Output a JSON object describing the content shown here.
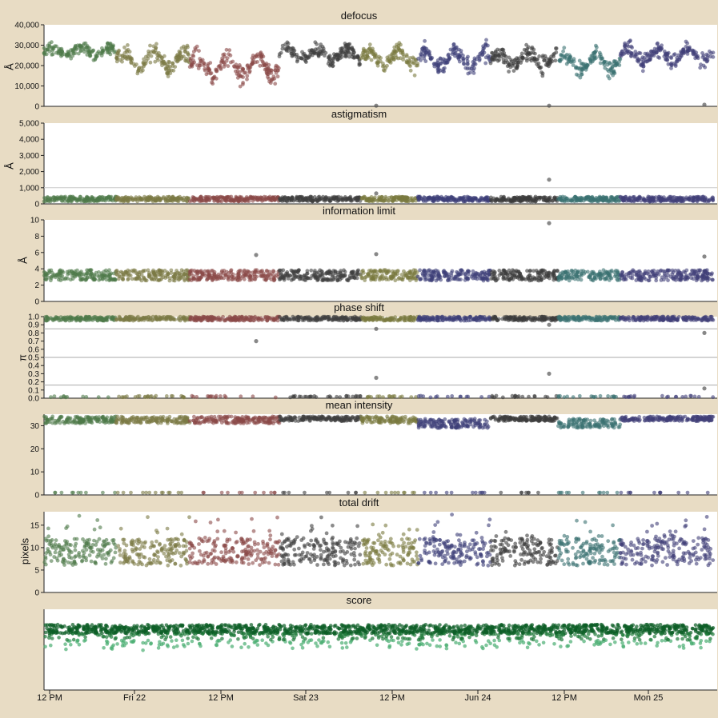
{
  "chart_data": [
    {
      "type": "scatter",
      "title": "defocus",
      "ylabel": "Å",
      "ylim": [
        0,
        40000
      ],
      "yticks": [
        "0",
        "10,000",
        "20,000",
        "30,000",
        "40,000"
      ],
      "ytick_values": [
        0,
        10000,
        20000,
        30000,
        40000
      ],
      "bands": [
        [
          23000,
          31000
        ],
        [
          14000,
          32000
        ],
        [
          9000,
          30000
        ],
        [
          19000,
          32000
        ],
        [
          16000,
          31000
        ],
        [
          14000,
          32000
        ],
        [
          15000,
          31000
        ],
        [
          13000,
          30000
        ],
        [
          18000,
          32000
        ],
        [
          13000,
          31000
        ],
        [
          10000,
          30000
        ]
      ],
      "outlier_values": [
        300,
        300,
        800
      ]
    },
    {
      "type": "scatter",
      "title": "astigmatism",
      "ylabel": "Å",
      "ylim": [
        0,
        5000
      ],
      "yticks": [
        "0",
        "1,000",
        "2,000",
        "3,000",
        "4,000",
        "5,000"
      ],
      "ytick_values": [
        0,
        1000,
        2000,
        3000,
        4000,
        5000
      ],
      "typical_range": [
        150,
        450
      ],
      "outlier_values": [
        1500,
        650
      ]
    },
    {
      "type": "scatter",
      "title": "information limit",
      "ylabel": "Å",
      "ylim": [
        0,
        10
      ],
      "yticks": [
        "0",
        "2",
        "4",
        "6",
        "8",
        "10"
      ],
      "ytick_values": [
        0,
        2,
        4,
        6,
        8,
        10
      ],
      "typical_range": [
        2.6,
        4.2
      ],
      "outlier_values": [
        9.6,
        5.8,
        5.5,
        5.7
      ]
    },
    {
      "type": "scatter",
      "title": "phase shift",
      "ylabel": "π",
      "ylim": [
        0,
        1
      ],
      "yticks": [
        "0.0",
        "0.1",
        "0.2",
        "0.3",
        "0.4",
        "0.5",
        "0.6",
        "0.7",
        "0.8",
        "0.9",
        "1.0"
      ],
      "ytick_values": [
        0,
        0.1,
        0.2,
        0.3,
        0.4,
        0.5,
        0.6,
        0.7,
        0.8,
        0.9,
        1.0
      ],
      "reference_lines": [
        0.85,
        0.5,
        0.16
      ],
      "main_cluster": [
        0.95,
        1.0
      ],
      "low_cluster": 0.02,
      "outlier_values": [
        0.9,
        0.85,
        0.8,
        0.7,
        0.3,
        0.25,
        0.12
      ]
    },
    {
      "type": "scatter",
      "title": "mean intensity",
      "ylim": [
        0,
        35
      ],
      "yticks": [
        "0",
        "10",
        "20",
        "30"
      ],
      "ytick_values": [
        0,
        10,
        20,
        30
      ],
      "bands": [
        [
          31,
          34
        ],
        [
          31,
          34
        ],
        [
          31,
          34
        ],
        [
          32,
          34
        ],
        [
          31,
          34
        ],
        [
          29,
          33
        ],
        [
          32,
          34
        ],
        [
          29,
          33
        ],
        [
          32,
          34
        ]
      ],
      "low_value": 1
    },
    {
      "type": "scatter",
      "title": "total drift",
      "ylabel": "pixels",
      "ylim": [
        0,
        18
      ],
      "yticks": [
        "0",
        "5",
        "10",
        "15"
      ],
      "ytick_values": [
        0,
        5,
        10,
        15
      ],
      "typical_range": [
        5,
        17
      ]
    },
    {
      "type": "scatter",
      "title": "score",
      "typical_range": [
        0.55,
        0.9
      ]
    }
  ],
  "x_axis": {
    "tick_labels": [
      "12 PM",
      "Fri 22",
      "12 PM",
      "Sat 23",
      "12 PM",
      "Jun 24",
      "12 PM",
      "Mon 25"
    ]
  },
  "groups": [
    {
      "color": "#4e7a4a"
    },
    {
      "color": "#7c7a45"
    },
    {
      "color": "#8a4a47"
    },
    {
      "color": "#404040"
    },
    {
      "color": "#7a7a40"
    },
    {
      "color": "#3e3f78"
    },
    {
      "color": "#3c3c3c"
    },
    {
      "color": "#3a7272"
    },
    {
      "color": "#414078"
    }
  ],
  "score_colors": [
    "#0d5e26",
    "#1f7a3a",
    "#4aae72"
  ]
}
